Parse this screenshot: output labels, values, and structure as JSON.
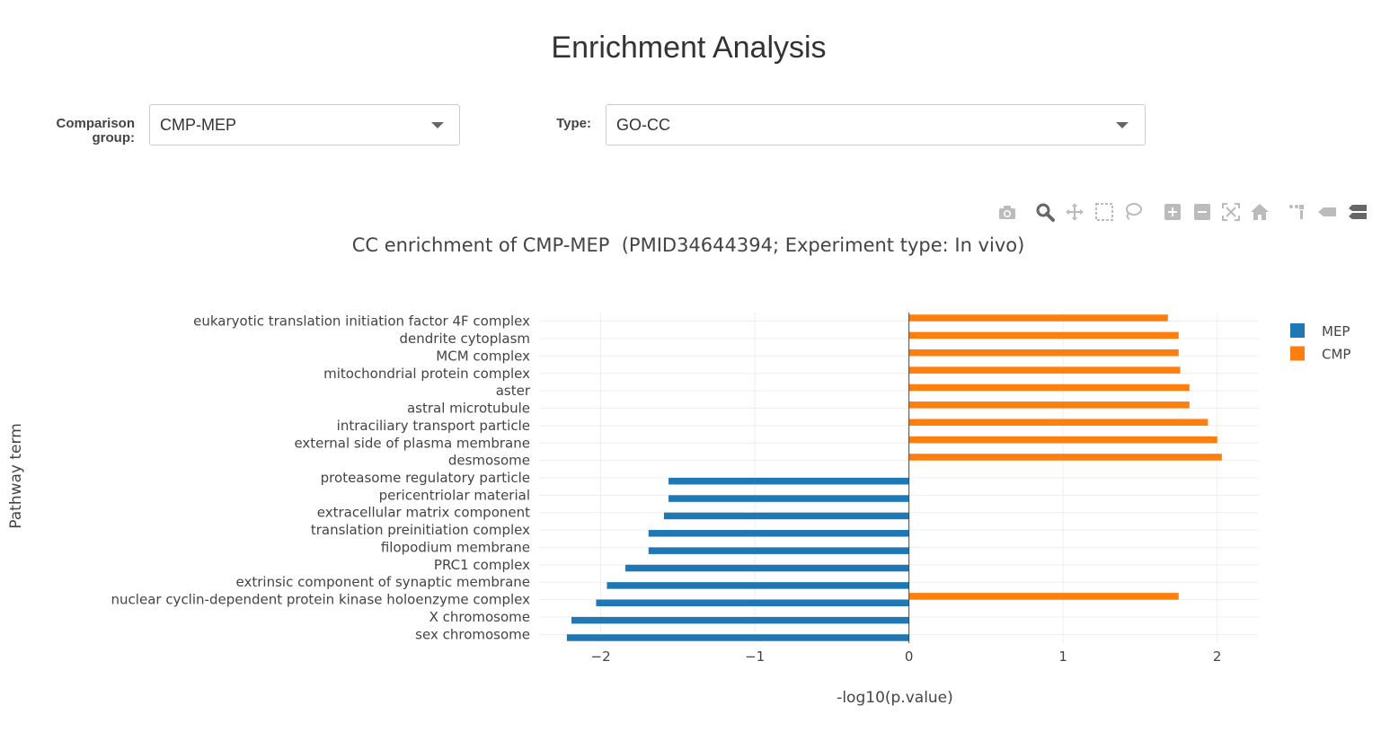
{
  "page": {
    "title": "Enrichment Analysis"
  },
  "controls": {
    "comparison_label_line1": "Comparison",
    "comparison_label_line2": "group:",
    "comparison_value": "CMP-MEP",
    "type_label": "Type:",
    "type_value": "GO-CC"
  },
  "modebar": {
    "icons": [
      "camera-icon",
      "zoom-icon",
      "pan-icon",
      "box-select-icon",
      "lasso-icon",
      "zoom-in-icon",
      "zoom-out-icon",
      "autoscale-icon",
      "reset-axes-icon",
      "spike-lines-icon",
      "hover-closest-icon",
      "hover-compare-icon"
    ]
  },
  "colors": {
    "MEP": "#1f77b4",
    "CMP": "#ff7f0e",
    "grid": "#eeeeee",
    "zeroline": "#444444"
  },
  "chart_data": {
    "type": "bar",
    "orientation": "horizontal",
    "title": "CC enrichment of CMP-MEP  (PMID34644394; Experiment type: In vivo)",
    "xlabel": "-log10(p.value)",
    "ylabel": "Pathway term",
    "xlim": [
      -2.4,
      2.27
    ],
    "xticks": [
      -2,
      -1,
      0,
      1,
      2
    ],
    "xtick_labels": [
      "−2",
      "−1",
      "0",
      "1",
      "2"
    ],
    "grid": true,
    "legend_position": "top-right",
    "categories": [
      "sex chromosome",
      "X chromosome",
      "nuclear cyclin-dependent protein kinase holoenzyme complex",
      "extrinsic component of synaptic membrane",
      "PRC1 complex",
      "filopodium membrane",
      "translation preinitiation complex",
      "extracellular matrix component",
      "pericentriolar material",
      "proteasome regulatory particle",
      "desmosome",
      "external side of plasma membrane",
      "intraciliary transport particle",
      "astral microtubule",
      "aster",
      "mitochondrial protein complex",
      "MCM complex",
      "dendrite cytoplasm",
      "eukaryotic translation initiation factor 4F complex"
    ],
    "series": [
      {
        "name": "MEP",
        "values": [
          -2.22,
          -2.19,
          -2.03,
          -1.96,
          -1.84,
          -1.69,
          -1.69,
          -1.59,
          -1.56,
          -1.56,
          null,
          null,
          null,
          null,
          null,
          null,
          null,
          null,
          null
        ]
      },
      {
        "name": "CMP",
        "values": [
          null,
          null,
          1.75,
          null,
          null,
          null,
          null,
          null,
          null,
          null,
          2.03,
          2.0,
          1.94,
          1.82,
          1.82,
          1.76,
          1.75,
          1.75,
          1.68
        ]
      }
    ]
  }
}
